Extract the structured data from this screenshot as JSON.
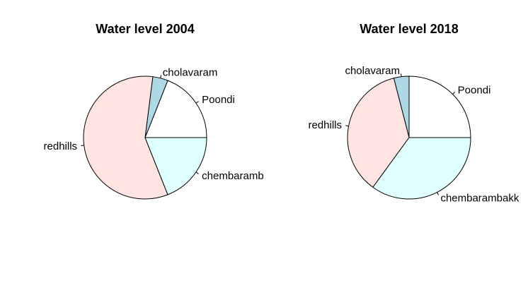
{
  "chart_data": [
    {
      "type": "pie",
      "title": "Water level 2004",
      "categories": [
        "Poondi",
        "cholavaram",
        "redhills",
        "chembarambakkam"
      ],
      "values": [
        19,
        4,
        58,
        19
      ],
      "unit": "percent share",
      "colors": [
        "#ffffff",
        "#add8e6",
        "#ffe4e1",
        "#e0ffff"
      ],
      "displayed_labels": [
        "Poondi",
        "cholavaram",
        "redhills",
        "chembarambakkam"
      ]
    },
    {
      "type": "pie",
      "title": "Water level 2018",
      "categories": [
        "Poondi",
        "cholavaram",
        "redhills",
        "chembarambakkam"
      ],
      "values": [
        25,
        4,
        36,
        35
      ],
      "unit": "percent share",
      "colors": [
        "#ffffff",
        "#add8e6",
        "#ffe4e1",
        "#e0ffff"
      ],
      "displayed_labels": [
        "Poondi",
        "cholavaram",
        "redhills",
        "chembarambakk"
      ]
    }
  ]
}
